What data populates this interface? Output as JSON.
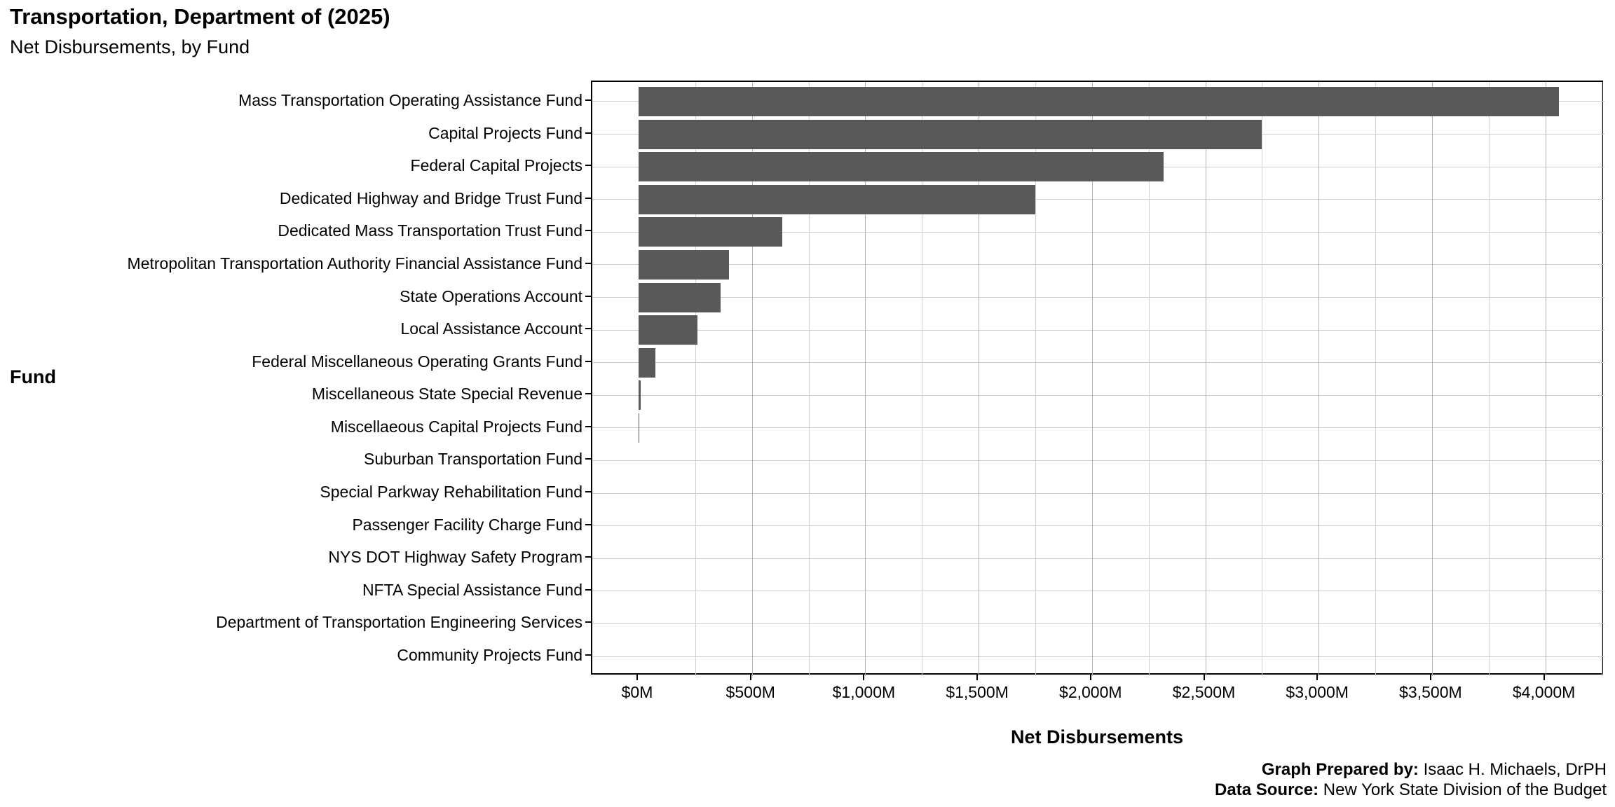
{
  "title": "Transportation, Department of (2025)",
  "subtitle": "Net Disbursements, by Fund",
  "axes": {
    "y_title": "Fund",
    "x_title": "Net Disbursements"
  },
  "footer": {
    "prepared_label": "Graph Prepared by:",
    "prepared_value": " Isaac H. Michaels, DrPH",
    "source_label": "Data Source:",
    "source_value": " New York State Division of the Budget"
  },
  "colors": {
    "bar": "#595959",
    "panel_border": "#000000",
    "grid_major": "#b2b2b2",
    "grid_minor": "#d2d2d2",
    "grid_row": "#cccccc",
    "background": "#ffffff",
    "text": "#000000"
  },
  "chart_data": {
    "type": "bar",
    "orientation": "horizontal",
    "title": "Transportation, Department of (2025)",
    "subtitle": "Net Disbursements, by Fund",
    "xlabel": "Net Disbursements",
    "ylabel": "Fund",
    "units": "USD millions",
    "xlim": [
      0,
      4260
    ],
    "grid": true,
    "minor_step": 250,
    "major_step": 500,
    "categories": [
      "Mass Transportation Operating Assistance Fund",
      "Capital Projects Fund",
      "Federal Capital Projects",
      "Dedicated Highway and Bridge Trust Fund",
      "Dedicated Mass Transportation Trust Fund",
      "Metropolitan Transportation Authority Financial Assistance Fund",
      "State Operations Account",
      "Local Assistance Account",
      "Federal Miscellaneous Operating Grants Fund",
      "Miscellaneous State Special Revenue",
      "Miscellaeous Capital Projects Fund",
      "Suburban Transportation Fund",
      "Special Parkway Rehabilitation Fund",
      "Passenger Facility Charge Fund",
      "NYS DOT Highway Safety Program",
      "NFTA Special Assistance Fund",
      "Department of Transportation Engineering Services",
      "Community Projects Fund"
    ],
    "values": [
      4060,
      2750,
      2315,
      1750,
      633,
      400,
      363,
      261,
      73,
      9,
      3,
      0,
      0,
      0,
      0,
      0,
      0,
      0
    ],
    "x_ticks": {
      "values": [
        0,
        500,
        1000,
        1500,
        2000,
        2500,
        3000,
        3500,
        4000
      ],
      "labels": [
        "$0M",
        "$500M",
        "$1,000M",
        "$1,500M",
        "$2,000M",
        "$2,500M",
        "$3,000M",
        "$3,500M",
        "$4,000M"
      ]
    },
    "legend": null
  }
}
